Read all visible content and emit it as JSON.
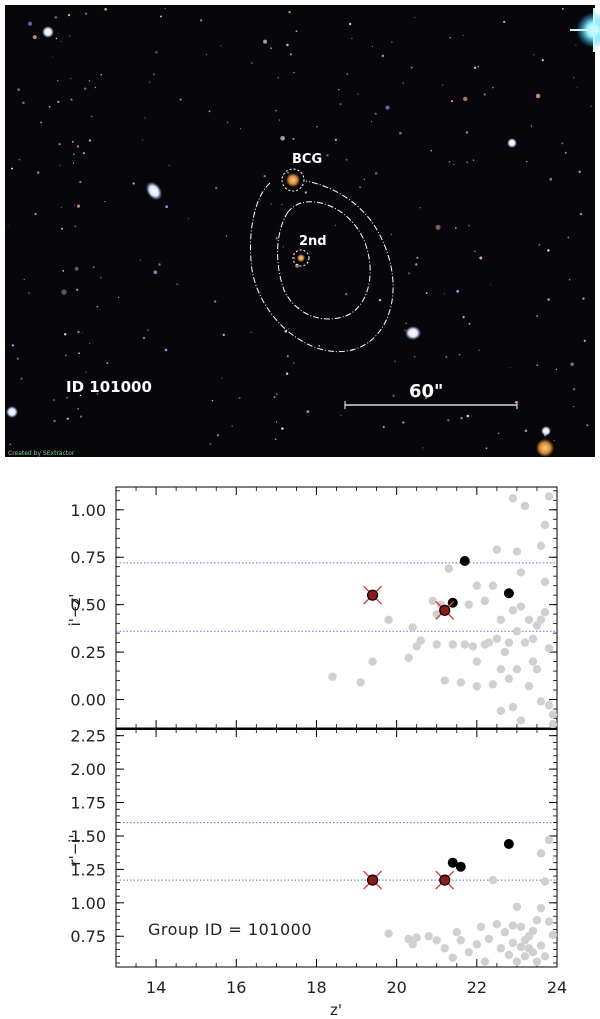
{
  "image_panel": {
    "id_label": "ID 101000",
    "scale_label": "60\"",
    "bcg_label": "BCG",
    "second_label": "2nd",
    "credit": "Created by SExtractor"
  },
  "chart_data": [
    {
      "type": "scatter",
      "panel": "top",
      "xlabel": "z'",
      "ylabel": "i'−z'",
      "xlim": [
        13,
        24
      ],
      "ylim": [
        -0.15,
        1.12
      ],
      "yticks": [
        "0.00",
        "0.25",
        "0.50",
        "0.75",
        "1.00"
      ],
      "ytick_values": [
        0.0,
        0.25,
        0.5,
        0.75,
        1.0
      ],
      "hlines": [
        0.72,
        0.36
      ],
      "colors": {
        "background": "#d0d0d0",
        "member": "#000000",
        "bcg": "#8b1a1a",
        "cross": "#e0412e",
        "hline": "#6a6ae0"
      },
      "background_points": [
        [
          18.4,
          0.12
        ],
        [
          19.1,
          0.09
        ],
        [
          19.4,
          0.2
        ],
        [
          19.8,
          0.42
        ],
        [
          20.3,
          0.22
        ],
        [
          20.5,
          0.28
        ],
        [
          20.6,
          0.31
        ],
        [
          20.4,
          0.38
        ],
        [
          20.9,
          0.52
        ],
        [
          21.0,
          0.45
        ],
        [
          21.1,
          0.5
        ],
        [
          21.3,
          0.69
        ],
        [
          21.4,
          0.29
        ],
        [
          21.6,
          0.09
        ],
        [
          21.7,
          0.29
        ],
        [
          21.8,
          0.5
        ],
        [
          21.9,
          0.28
        ],
        [
          22.0,
          0.07
        ],
        [
          22.0,
          0.2
        ],
        [
          22.2,
          0.52
        ],
        [
          22.3,
          0.3
        ],
        [
          22.4,
          0.08
        ],
        [
          22.4,
          0.6
        ],
        [
          22.5,
          0.32
        ],
        [
          22.5,
          0.79
        ],
        [
          22.6,
          -0.06
        ],
        [
          22.6,
          0.16
        ],
        [
          22.6,
          0.42
        ],
        [
          22.7,
          0.25
        ],
        [
          22.8,
          0.11
        ],
        [
          22.8,
          0.3
        ],
        [
          22.9,
          1.06
        ],
        [
          22.9,
          0.47
        ],
        [
          22.9,
          -0.04
        ],
        [
          23.0,
          0.36
        ],
        [
          23.0,
          0.16
        ],
        [
          23.0,
          0.78
        ],
        [
          23.1,
          0.49
        ],
        [
          23.1,
          0.67
        ],
        [
          23.1,
          -0.11
        ],
        [
          23.2,
          1.02
        ],
        [
          23.2,
          0.3
        ],
        [
          23.3,
          0.07
        ],
        [
          23.3,
          0.42
        ],
        [
          23.4,
          0.2
        ],
        [
          23.4,
          0.32
        ],
        [
          23.5,
          0.16
        ],
        [
          23.5,
          0.39
        ],
        [
          23.6,
          -0.01
        ],
        [
          23.6,
          0.42
        ],
        [
          23.6,
          0.81
        ],
        [
          23.7,
          0.62
        ],
        [
          23.7,
          0.46
        ],
        [
          23.7,
          0.92
        ],
        [
          23.8,
          1.07
        ],
        [
          23.8,
          0.27
        ],
        [
          23.8,
          -0.03
        ],
        [
          23.9,
          -0.08
        ],
        [
          23.9,
          -0.13
        ],
        [
          22.2,
          0.29
        ],
        [
          21.2,
          0.1
        ],
        [
          21.0,
          0.29
        ],
        [
          22.0,
          0.6
        ]
      ],
      "member_points": [
        [
          21.7,
          0.73
        ],
        [
          21.4,
          0.51
        ],
        [
          22.8,
          0.56
        ]
      ],
      "bcg_points": [
        [
          19.4,
          0.55
        ],
        [
          21.2,
          0.47
        ]
      ]
    },
    {
      "type": "scatter",
      "panel": "bottom",
      "xlabel": "z'",
      "ylabel": "r'−i'",
      "xlim": [
        13,
        24
      ],
      "ylim": [
        0.52,
        2.3
      ],
      "yticks": [
        "0.75",
        "1.00",
        "1.25",
        "1.50",
        "1.75",
        "2.00",
        "2.25"
      ],
      "ytick_values": [
        0.75,
        1.0,
        1.25,
        1.5,
        1.75,
        2.0,
        2.25
      ],
      "xticks": [
        "14",
        "16",
        "18",
        "20",
        "22",
        "24"
      ],
      "xtick_values": [
        14,
        16,
        18,
        20,
        22,
        24
      ],
      "hlines": [
        1.6,
        1.17
      ],
      "annotation": "Group ID = 101000",
      "colors": {
        "background": "#d0d0d0",
        "member": "#000000",
        "bcg": "#8b1a1a",
        "cross": "#e0412e",
        "hline": "#6a6ae0"
      },
      "background_points": [
        [
          19.8,
          0.77
        ],
        [
          20.5,
          0.74
        ],
        [
          20.8,
          0.75
        ],
        [
          20.4,
          0.69
        ],
        [
          20.3,
          0.73
        ],
        [
          21.2,
          0.66
        ],
        [
          21.4,
          0.59
        ],
        [
          21.0,
          0.72
        ],
        [
          21.6,
          0.72
        ],
        [
          21.8,
          0.63
        ],
        [
          22.0,
          0.69
        ],
        [
          22.2,
          0.56
        ],
        [
          22.3,
          0.73
        ],
        [
          22.4,
          1.17
        ],
        [
          22.5,
          0.84
        ],
        [
          22.6,
          0.66
        ],
        [
          22.7,
          0.78
        ],
        [
          22.8,
          0.61
        ],
        [
          22.9,
          0.83
        ],
        [
          22.9,
          0.7
        ],
        [
          23.0,
          0.56
        ],
        [
          23.1,
          0.67
        ],
        [
          23.1,
          0.82
        ],
        [
          23.2,
          0.6
        ],
        [
          23.2,
          0.72
        ],
        [
          23.3,
          0.75
        ],
        [
          23.3,
          0.66
        ],
        [
          23.4,
          0.79
        ],
        [
          23.4,
          0.63
        ],
        [
          23.5,
          0.56
        ],
        [
          23.6,
          0.68
        ],
        [
          23.6,
          0.96
        ],
        [
          23.6,
          1.37
        ],
        [
          23.7,
          1.16
        ],
        [
          23.7,
          0.6
        ],
        [
          23.8,
          1.47
        ],
        [
          23.8,
          0.86
        ],
        [
          23.9,
          0.76
        ],
        [
          21.5,
          0.78
        ],
        [
          22.1,
          0.82
        ],
        [
          23.0,
          0.97
        ],
        [
          23.5,
          0.87
        ]
      ],
      "member_points": [
        [
          21.4,
          1.3
        ],
        [
          21.6,
          1.27
        ],
        [
          22.8,
          1.44
        ]
      ],
      "bcg_points": [
        [
          19.4,
          1.17
        ],
        [
          21.2,
          1.17
        ]
      ]
    }
  ]
}
